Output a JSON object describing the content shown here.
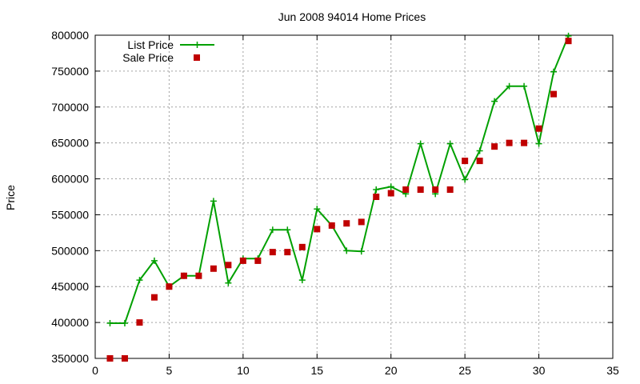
{
  "chart_data": {
    "type": "line",
    "title": "Jun 2008 94014 Home Prices",
    "xlabel": "",
    "ylabel": "Price",
    "xlim": [
      0,
      35
    ],
    "ylim": [
      350000,
      800000
    ],
    "xticks": [
      0,
      5,
      10,
      15,
      20,
      25,
      30,
      35
    ],
    "yticks": [
      350000,
      400000,
      450000,
      500000,
      550000,
      600000,
      650000,
      700000,
      750000,
      800000
    ],
    "grid": true,
    "legend_position": "top-left",
    "series": [
      {
        "name": "List Price",
        "style": "line+cross",
        "color": "#00a000",
        "x": [
          1,
          2,
          3,
          4,
          5,
          6,
          7,
          8,
          9,
          10,
          11,
          12,
          13,
          14,
          15,
          16,
          17,
          18,
          19,
          20,
          21,
          22,
          23,
          24,
          25,
          26,
          27,
          28,
          29,
          30,
          31,
          32
        ],
        "y": [
          399000,
          399000,
          459000,
          486000,
          450000,
          465000,
          465000,
          569000,
          455000,
          489000,
          489000,
          529000,
          529000,
          459000,
          558000,
          535000,
          500000,
          499000,
          585000,
          589000,
          579000,
          649000,
          579000,
          649000,
          599000,
          639000,
          708000,
          729000,
          729000,
          649000,
          749000,
          799000
        ]
      },
      {
        "name": "Sale Price",
        "style": "square",
        "color": "#c00000",
        "x": [
          1,
          2,
          3,
          4,
          5,
          6,
          7,
          8,
          9,
          10,
          11,
          12,
          13,
          14,
          15,
          16,
          17,
          18,
          19,
          20,
          21,
          22,
          23,
          24,
          25,
          26,
          27,
          28,
          29,
          30,
          31,
          32
        ],
        "y": [
          350000,
          350000,
          400000,
          435000,
          450000,
          465000,
          465000,
          475000,
          480000,
          486000,
          486000,
          498000,
          498000,
          505000,
          530000,
          535000,
          538000,
          540000,
          575000,
          580000,
          585000,
          585000,
          585000,
          585000,
          625000,
          625000,
          645000,
          650000,
          650000,
          670000,
          718000,
          792000
        ]
      }
    ]
  }
}
